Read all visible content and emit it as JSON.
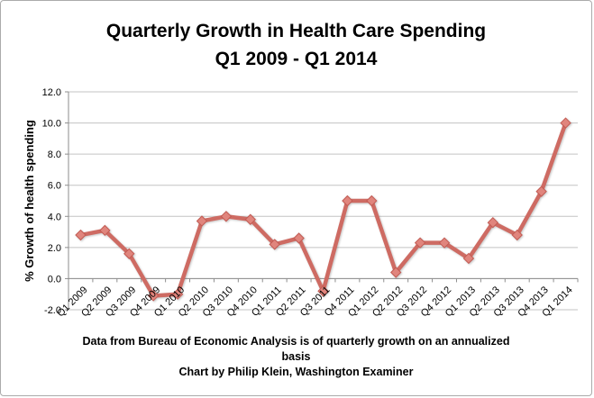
{
  "title": {
    "line1": "Quarterly Growth in Health Care Spending",
    "line2": "Q1 2009 - Q1 2014"
  },
  "footer": {
    "note_line1": "Data from Bureau of Economic Analysis is of quarterly growth on an annualized",
    "note_line2": "basis",
    "credit": "Chart by Philip Klein, Washington Examiner"
  },
  "chart_data": {
    "type": "line",
    "title": "Quarterly Growth in Health Care Spending Q1 2009 - Q1 2014",
    "xlabel": "",
    "ylabel": "% Growth of health spending",
    "categories": [
      "Q1 2009",
      "Q2 2009",
      "Q3 2009",
      "Q4 2009",
      "Q1 2010",
      "Q2 2010",
      "Q3 2010",
      "Q4 2010",
      "Q1 2011",
      "Q2 2011",
      "Q3 2011",
      "Q4 2011",
      "Q1 2012",
      "Q2 2012",
      "Q3 2012",
      "Q4 2012",
      "Q1 2013",
      "Q2 2013",
      "Q3 2013",
      "Q4 2013",
      "Q1 2014"
    ],
    "values": [
      2.8,
      3.1,
      1.6,
      -1.1,
      -1.0,
      3.7,
      4.0,
      3.8,
      2.2,
      2.6,
      -0.8,
      5.0,
      5.0,
      0.4,
      2.3,
      2.3,
      1.3,
      3.6,
      2.8,
      5.6,
      10.0
    ],
    "ylim": [
      -2,
      12
    ],
    "ytick_step": 2,
    "ytick_labels": [
      "-2.0",
      "0.0",
      "2.0",
      "4.0",
      "6.0",
      "8.0",
      "10.0",
      "12.0"
    ],
    "grid": true,
    "legend": "none",
    "marker": "diamond",
    "colors": {
      "line": "#CE6B63",
      "marker_fill": "#E0857D",
      "marker_stroke": "#C25B53",
      "gridline": "#C3C3C3",
      "axis": "#8E8E8E",
      "text": "#000000",
      "frame_border": "#ABABAB"
    }
  }
}
